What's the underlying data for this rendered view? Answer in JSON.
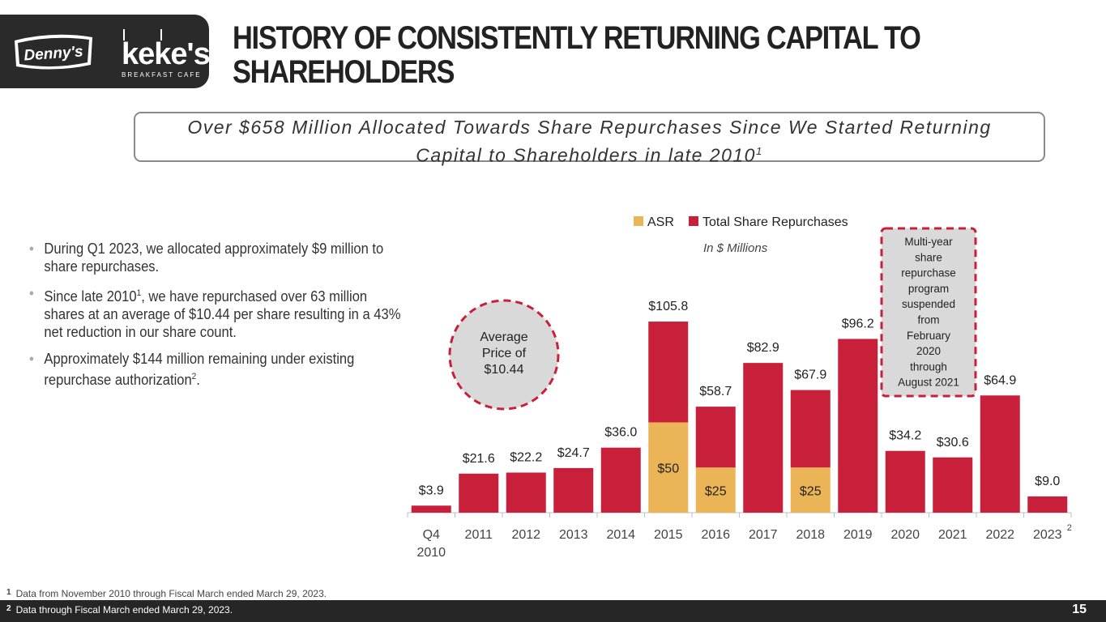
{
  "header": {
    "title": "HISTORY OF CONSISTENTLY RETURNING CAPITAL TO SHAREHOLDERS",
    "logo_dennys": "Denny's",
    "logo_kekes": "keke's",
    "logo_kekes_sub": "BREAKFAST CAFE"
  },
  "banner": {
    "line1": "Over $658 Million Allocated Towards Share Repurchases Since We Started Returning",
    "line2": "Capital to Shareholders in late 2010",
    "line2_sup": "1"
  },
  "bullets": [
    {
      "text": "During Q1 2023, we allocated approximately $9 million to share repurchases.",
      "sup": "",
      "tail": ""
    },
    {
      "text": "Since late 2010",
      "sup": "1",
      "tail": ", we have repurchased over 63 million shares at an average of $10.44 per share resulting in a 43% net reduction in our share count."
    },
    {
      "text": "Approximately $144 million remaining under existing repurchase authorization",
      "sup": "2",
      "tail": "."
    }
  ],
  "bullet_glyph": "•",
  "chart_data": {
    "type": "bar",
    "stacked": true,
    "categories": [
      "Q4\n2010",
      "2011",
      "2012",
      "2013",
      "2014",
      "2015",
      "2016",
      "2017",
      "2018",
      "2019",
      "2020",
      "2021",
      "2022",
      "2023"
    ],
    "last_category_sup": "2",
    "series": [
      {
        "name": "ASR",
        "color": "#EBB557",
        "values": [
          0,
          0,
          0,
          0,
          0,
          50,
          25,
          0,
          25,
          0,
          0,
          0,
          0,
          0
        ]
      },
      {
        "name": "Total Share Repurchases",
        "color": "#C8203A",
        "values": [
          3.9,
          21.6,
          22.2,
          24.7,
          36.0,
          55.8,
          33.7,
          82.9,
          42.9,
          96.2,
          34.2,
          30.6,
          64.9,
          9.0
        ]
      }
    ],
    "total_labels": [
      "$3.9",
      "$21.6",
      "$22.2",
      "$24.7",
      "$36.0",
      "$105.8",
      "$58.7",
      "$82.9",
      "$67.9",
      "$96.2",
      "$34.2",
      "$30.6",
      "$64.9",
      "$9.0"
    ],
    "asr_labels": [
      "",
      "",
      "",
      "",
      "",
      "$50",
      "$25",
      "",
      "$25",
      "",
      "",
      "",
      "",
      ""
    ],
    "ylim": [
      0,
      110
    ],
    "subtitle": "In $ Millions",
    "legend_position": "top",
    "circle_annotation": "Average Price of $10.44",
    "circle_lines": [
      "Average",
      "Price of",
      "$10.44"
    ],
    "box_annotation_lines": [
      "Multi-year",
      "share",
      "repurchase",
      "program",
      "suspended",
      "from",
      "February",
      "2020",
      "through",
      "August 2021"
    ]
  },
  "footnotes": {
    "fn1_mark": "1",
    "fn1": "Data from November 2010 through Fiscal March ended March 29, 2023.",
    "fn2_mark": "2",
    "fn2": "Data through Fiscal March ended March 29, 2023."
  },
  "page_number": "15",
  "colors": {
    "asr": "#EBB557",
    "total": "#C8203A",
    "dark": "#262626"
  }
}
